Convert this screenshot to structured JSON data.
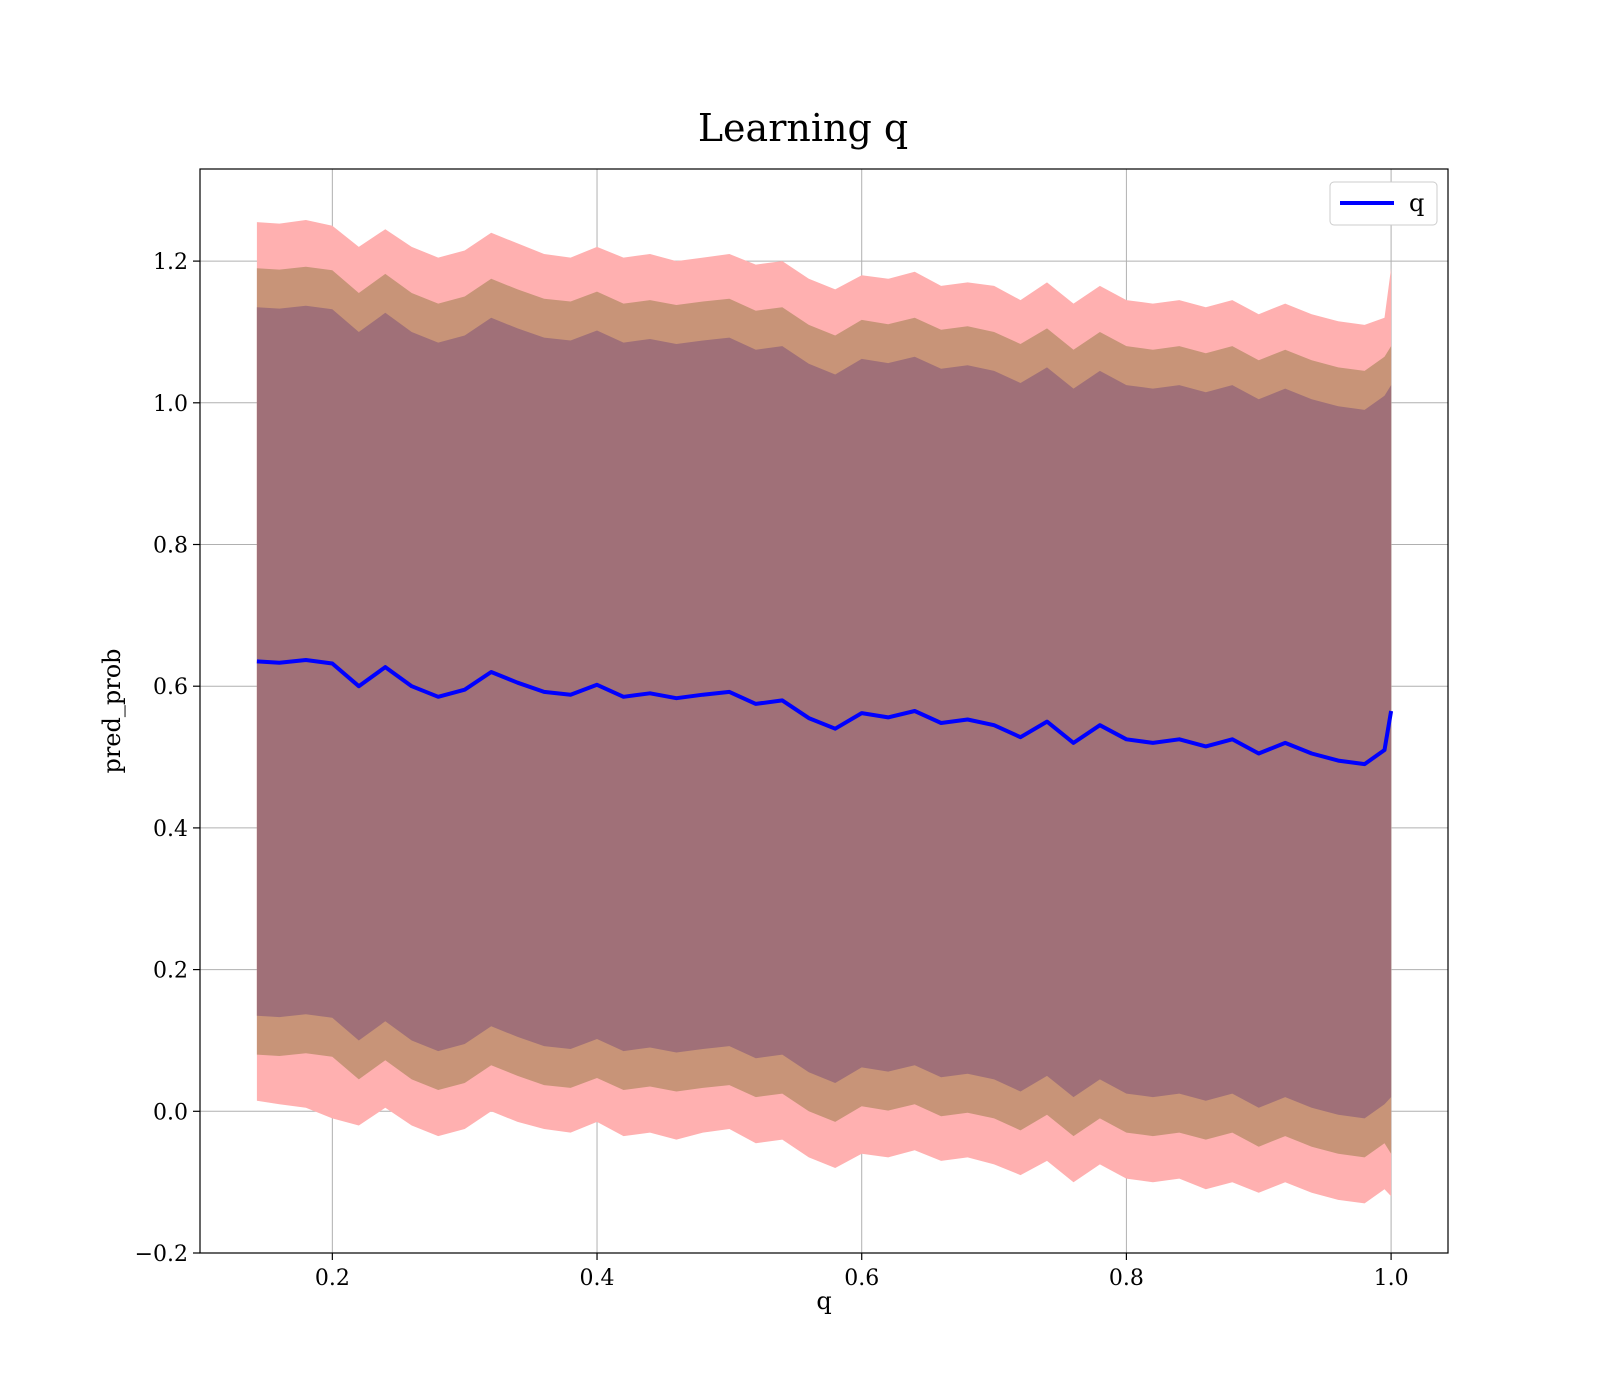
{
  "chart_data": {
    "type": "line",
    "title": "Learning q",
    "xlabel": "q",
    "ylabel": "pred_prob",
    "xlim": [
      0.1,
      1.043
    ],
    "ylim": [
      -0.2,
      1.33
    ],
    "x_ticks": [
      0.2,
      0.4,
      0.6,
      0.8,
      1.0
    ],
    "x_tick_labels": [
      "0.2",
      "0.4",
      "0.6",
      "0.8",
      "1.0"
    ],
    "y_ticks": [
      -0.2,
      0.0,
      0.2,
      0.4,
      0.6,
      0.8,
      1.0,
      1.2
    ],
    "y_tick_labels": [
      "−0.2",
      "0.0",
      "0.2",
      "0.4",
      "0.6",
      "0.8",
      "1.0",
      "1.2"
    ],
    "grid": true,
    "legend": {
      "position": "top-right",
      "entries": [
        "q"
      ]
    },
    "colors": {
      "line": "#0000ff",
      "band_outer": "#ffb0b0",
      "band_middle": "#c89478",
      "band_inner": "#a07078"
    },
    "x": [
      0.143,
      0.16,
      0.18,
      0.2,
      0.22,
      0.24,
      0.26,
      0.28,
      0.3,
      0.32,
      0.34,
      0.36,
      0.38,
      0.4,
      0.42,
      0.44,
      0.46,
      0.48,
      0.5,
      0.52,
      0.54,
      0.56,
      0.58,
      0.6,
      0.62,
      0.64,
      0.66,
      0.68,
      0.7,
      0.72,
      0.74,
      0.76,
      0.78,
      0.8,
      0.82,
      0.84,
      0.86,
      0.88,
      0.9,
      0.92,
      0.94,
      0.96,
      0.98,
      0.995,
      1.0
    ],
    "series": [
      {
        "name": "q",
        "values": [
          0.635,
          0.633,
          0.637,
          0.632,
          0.6,
          0.627,
          0.6,
          0.585,
          0.595,
          0.62,
          0.605,
          0.592,
          0.588,
          0.602,
          0.585,
          0.59,
          0.583,
          0.588,
          0.592,
          0.575,
          0.58,
          0.555,
          0.54,
          0.562,
          0.556,
          0.565,
          0.548,
          0.553,
          0.545,
          0.528,
          0.55,
          0.52,
          0.545,
          0.525,
          0.52,
          0.525,
          0.515,
          0.525,
          0.505,
          0.52,
          0.505,
          0.495,
          0.49,
          0.51,
          0.565
        ]
      }
    ],
    "bands": [
      {
        "lower": [
          0.015,
          0.01,
          0.005,
          -0.01,
          -0.02,
          0.005,
          -0.02,
          -0.035,
          -0.025,
          0.0,
          -0.015,
          -0.025,
          -0.03,
          -0.015,
          -0.035,
          -0.03,
          -0.04,
          -0.03,
          -0.025,
          -0.045,
          -0.04,
          -0.065,
          -0.08,
          -0.06,
          -0.065,
          -0.055,
          -0.07,
          -0.065,
          -0.075,
          -0.09,
          -0.07,
          -0.1,
          -0.075,
          -0.095,
          -0.1,
          -0.095,
          -0.11,
          -0.1,
          -0.115,
          -0.1,
          -0.115,
          -0.125,
          -0.13,
          -0.11,
          -0.12
        ],
        "upper": [
          1.255,
          1.253,
          1.258,
          1.25,
          1.22,
          1.245,
          1.22,
          1.205,
          1.215,
          1.24,
          1.225,
          1.21,
          1.205,
          1.22,
          1.205,
          1.21,
          1.2,
          1.205,
          1.21,
          1.195,
          1.2,
          1.175,
          1.16,
          1.18,
          1.175,
          1.185,
          1.165,
          1.17,
          1.165,
          1.145,
          1.17,
          1.14,
          1.165,
          1.145,
          1.14,
          1.145,
          1.135,
          1.145,
          1.125,
          1.14,
          1.125,
          1.115,
          1.11,
          1.12,
          1.19
        ]
      },
      {
        "lower": [
          0.08,
          0.078,
          0.082,
          0.077,
          0.045,
          0.072,
          0.045,
          0.03,
          0.04,
          0.065,
          0.05,
          0.037,
          0.033,
          0.047,
          0.03,
          0.035,
          0.028,
          0.033,
          0.037,
          0.02,
          0.025,
          0.0,
          -0.015,
          0.007,
          0.001,
          0.01,
          -0.007,
          -0.002,
          -0.01,
          -0.027,
          -0.005,
          -0.035,
          -0.01,
          -0.03,
          -0.035,
          -0.03,
          -0.04,
          -0.03,
          -0.05,
          -0.035,
          -0.05,
          -0.06,
          -0.065,
          -0.045,
          -0.06
        ],
        "upper": [
          1.19,
          1.188,
          1.192,
          1.187,
          1.155,
          1.182,
          1.155,
          1.14,
          1.15,
          1.175,
          1.16,
          1.147,
          1.143,
          1.157,
          1.14,
          1.145,
          1.138,
          1.143,
          1.147,
          1.13,
          1.135,
          1.11,
          1.095,
          1.117,
          1.111,
          1.12,
          1.103,
          1.108,
          1.1,
          1.083,
          1.105,
          1.075,
          1.1,
          1.08,
          1.075,
          1.08,
          1.07,
          1.08,
          1.06,
          1.075,
          1.06,
          1.05,
          1.045,
          1.065,
          1.08
        ]
      },
      {
        "lower": [
          0.135,
          0.133,
          0.137,
          0.132,
          0.1,
          0.127,
          0.1,
          0.085,
          0.095,
          0.12,
          0.105,
          0.092,
          0.088,
          0.102,
          0.085,
          0.09,
          0.083,
          0.088,
          0.092,
          0.075,
          0.08,
          0.055,
          0.04,
          0.062,
          0.056,
          0.065,
          0.048,
          0.053,
          0.045,
          0.028,
          0.05,
          0.02,
          0.045,
          0.025,
          0.02,
          0.025,
          0.015,
          0.025,
          0.005,
          0.02,
          0.005,
          -0.005,
          -0.01,
          0.01,
          0.02
        ],
        "upper": [
          1.135,
          1.133,
          1.137,
          1.132,
          1.1,
          1.127,
          1.1,
          1.085,
          1.095,
          1.12,
          1.105,
          1.092,
          1.088,
          1.102,
          1.085,
          1.09,
          1.083,
          1.088,
          1.092,
          1.075,
          1.08,
          1.055,
          1.04,
          1.062,
          1.056,
          1.065,
          1.048,
          1.053,
          1.045,
          1.028,
          1.05,
          1.02,
          1.045,
          1.025,
          1.02,
          1.025,
          1.015,
          1.025,
          1.005,
          1.02,
          1.005,
          0.995,
          0.99,
          1.01,
          1.025
        ]
      }
    ]
  }
}
